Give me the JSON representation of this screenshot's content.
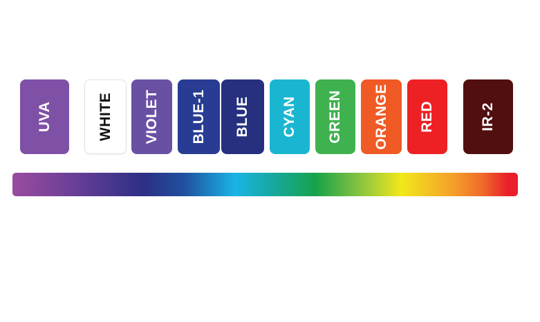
{
  "bands": [
    {
      "id": "uva",
      "label": "UVA",
      "color": "#7f51a6",
      "text_color": "#ffffff"
    },
    {
      "id": "white",
      "label": "WHITE",
      "color": "#ffffff",
      "text_color": "#111111"
    },
    {
      "id": "violet",
      "label": "VIOLET",
      "color": "#6a50a3",
      "text_color": "#ffffff"
    },
    {
      "id": "blue-1",
      "label": "BLUE-1",
      "color": "#273c92",
      "text_color": "#ffffff"
    },
    {
      "id": "blue",
      "label": "BLUE",
      "color": "#26307f",
      "text_color": "#ffffff"
    },
    {
      "id": "cyan",
      "label": "CYAN",
      "color": "#1ab6d1",
      "text_color": "#ffffff"
    },
    {
      "id": "green",
      "label": "GREEN",
      "color": "#3fb14f",
      "text_color": "#ffffff"
    },
    {
      "id": "orange",
      "label": "ORANGE",
      "color": "#f05a25",
      "text_color": "#ffffff"
    },
    {
      "id": "red",
      "label": "RED",
      "color": "#ed2024",
      "text_color": "#ffffff"
    },
    {
      "id": "ir-2",
      "label": "IR-2",
      "color": "#520f0f",
      "text_color": "#ffffff"
    }
  ],
  "spectrum_colors": [
    "#9a4c9f",
    "#2c2f85",
    "#1ab4e4",
    "#17a24a",
    "#f2e81a",
    "#ea1f2a"
  ]
}
